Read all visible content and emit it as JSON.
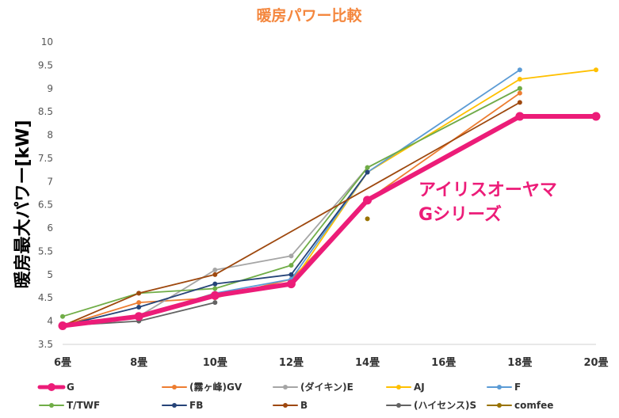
{
  "chart_data": {
    "type": "line",
    "title": "暖房パワー比較",
    "ylabel": "暖房最大パワー[kW]",
    "xlabel": "",
    "categories": [
      "6畳",
      "8畳",
      "10畳",
      "12畳",
      "14畳",
      "16畳",
      "18畳",
      "20畳"
    ],
    "y_ticks": [
      "3.5",
      "4",
      "4.5",
      "5",
      "5.5",
      "6",
      "6.5",
      "7",
      "7.5",
      "8",
      "8.5",
      "9",
      "9.5",
      "10"
    ],
    "ylim": [
      3.5,
      10
    ],
    "grid": false,
    "legend_position": "bottom",
    "annotation": [
      "アイリスオーヤマ",
      "Gシリーズ"
    ],
    "series": [
      {
        "name": "G",
        "color": "#EC1C78",
        "highlight": true,
        "values": [
          3.9,
          4.1,
          4.55,
          4.8,
          6.6,
          null,
          8.4,
          8.4
        ]
      },
      {
        "name": "(霧ヶ峰)GV",
        "color": "#ED7D31",
        "values": [
          3.9,
          4.4,
          4.5,
          4.9,
          6.6,
          null,
          8.9,
          null
        ]
      },
      {
        "name": "(ダイキン)E",
        "color": "#A5A5A5",
        "values": [
          3.9,
          4.1,
          5.1,
          5.4,
          7.3,
          null,
          9.0,
          null
        ]
      },
      {
        "name": "AJ",
        "color": "#FFC000",
        "values": [
          3.9,
          4.1,
          4.6,
          4.8,
          7.2,
          null,
          9.2,
          9.4
        ]
      },
      {
        "name": "F",
        "color": "#5B9BD5",
        "values": [
          3.9,
          4.1,
          4.6,
          4.9,
          7.2,
          null,
          9.4,
          null
        ]
      },
      {
        "name": "T/TWF",
        "color": "#70AD47",
        "values": [
          4.1,
          4.6,
          4.7,
          5.2,
          7.3,
          null,
          9.0,
          null
        ]
      },
      {
        "name": "FB",
        "color": "#264478",
        "values": [
          3.9,
          4.3,
          4.8,
          5.0,
          7.2,
          null,
          null,
          null
        ]
      },
      {
        "name": "B",
        "color": "#9E480E",
        "values": [
          3.9,
          4.6,
          5.0,
          null,
          null,
          null,
          8.7,
          null
        ]
      },
      {
        "name": "(ハイセンス)S",
        "color": "#636363",
        "values": [
          3.9,
          4.0,
          4.4,
          null,
          null,
          null,
          null,
          null
        ]
      },
      {
        "name": "comfee",
        "color": "#997300",
        "values": [
          null,
          null,
          null,
          null,
          6.2,
          null,
          null,
          null
        ]
      }
    ]
  },
  "colors": {
    "title": "#F4873E",
    "annotation": "#EC1C78",
    "ylabel": "#000000"
  }
}
